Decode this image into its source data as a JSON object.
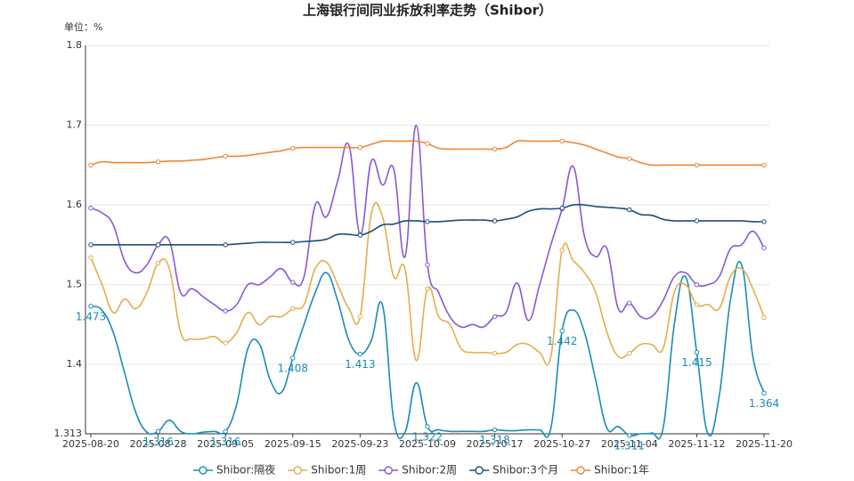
{
  "chart_data": {
    "type": "line",
    "title": "上海银行间同业拆放利率走势（Shibor）",
    "unit_label": "单位：%",
    "categories": [
      "2025-08-20",
      null,
      null,
      null,
      null,
      null,
      "2025-08-28",
      null,
      null,
      null,
      null,
      null,
      "2025-09-05",
      null,
      null,
      null,
      null,
      null,
      "2025-09-15",
      null,
      null,
      null,
      null,
      null,
      "2025-09-23",
      null,
      null,
      null,
      null,
      null,
      "2025-10-09",
      null,
      null,
      null,
      null,
      null,
      "2025-10-17",
      null,
      null,
      null,
      null,
      null,
      "2025-10-27",
      null,
      null,
      null,
      null,
      null,
      "2025-11-04",
      null,
      null,
      null,
      null,
      null,
      "2025-11-12",
      null,
      null,
      null,
      null,
      null,
      "2025-11-20"
    ],
    "ylim": [
      1.313,
      1.8
    ],
    "yticks": [
      1.313,
      1.4,
      1.5,
      1.6,
      1.7,
      1.8
    ],
    "grid": true,
    "legend": "bottom",
    "series": [
      {
        "name": "Shibor:隔夜",
        "color": "#1a8db3",
        "labels": true,
        "values": [
          1.473,
          1.468,
          1.44,
          1.39,
          1.34,
          1.315,
          1.316,
          1.33,
          1.316,
          1.313,
          1.315,
          1.316,
          1.316,
          1.35,
          1.42,
          1.426,
          1.38,
          1.365,
          1.408,
          1.45,
          1.49,
          1.515,
          1.48,
          1.43,
          1.413,
          1.43,
          1.474,
          1.33,
          1.315,
          1.377,
          1.322,
          1.318,
          1.316,
          1.316,
          1.316,
          1.316,
          1.318,
          1.317,
          1.317,
          1.318,
          1.318,
          1.32,
          1.442,
          1.468,
          1.44,
          1.38,
          1.32,
          1.322,
          1.311,
          1.313,
          1.314,
          1.32,
          1.45,
          1.51,
          1.415,
          1.313,
          1.36,
          1.48,
          1.525,
          1.41,
          1.364
        ]
      },
      {
        "name": "Shibor:1周",
        "color": "#e3ae4c",
        "values": [
          1.534,
          1.5,
          1.465,
          1.482,
          1.47,
          1.49,
          1.527,
          1.52,
          1.44,
          1.432,
          1.432,
          1.435,
          1.427,
          1.44,
          1.465,
          1.45,
          1.46,
          1.46,
          1.47,
          1.475,
          1.52,
          1.528,
          1.5,
          1.47,
          1.46,
          1.589,
          1.585,
          1.51,
          1.52,
          1.405,
          1.495,
          1.46,
          1.45,
          1.42,
          1.415,
          1.415,
          1.414,
          1.415,
          1.425,
          1.425,
          1.415,
          1.41,
          1.543,
          1.53,
          1.515,
          1.49,
          1.44,
          1.41,
          1.414,
          1.425,
          1.425,
          1.42,
          1.49,
          1.5,
          1.475,
          1.475,
          1.47,
          1.51,
          1.52,
          1.495,
          1.459
        ]
      },
      {
        "name": "Shibor:2周",
        "color": "#8959d1",
        "values": [
          1.596,
          1.59,
          1.575,
          1.53,
          1.515,
          1.525,
          1.55,
          1.555,
          1.49,
          1.495,
          1.485,
          1.475,
          1.467,
          1.475,
          1.5,
          1.5,
          1.51,
          1.52,
          1.503,
          1.51,
          1.6,
          1.585,
          1.63,
          1.675,
          1.563,
          1.655,
          1.625,
          1.645,
          1.535,
          1.7,
          1.525,
          1.49,
          1.46,
          1.447,
          1.45,
          1.447,
          1.46,
          1.465,
          1.502,
          1.455,
          1.5,
          1.55,
          1.595,
          1.648,
          1.56,
          1.535,
          1.545,
          1.47,
          1.477,
          1.46,
          1.46,
          1.48,
          1.51,
          1.515,
          1.5,
          1.5,
          1.51,
          1.545,
          1.55,
          1.567,
          1.546
        ]
      },
      {
        "name": "Shibor:3个月",
        "color": "#1d4e79",
        "values": [
          1.55,
          1.55,
          1.55,
          1.55,
          1.55,
          1.55,
          1.55,
          1.55,
          1.55,
          1.55,
          1.55,
          1.55,
          1.55,
          1.551,
          1.552,
          1.553,
          1.553,
          1.553,
          1.553,
          1.554,
          1.555,
          1.557,
          1.563,
          1.563,
          1.562,
          1.567,
          1.575,
          1.576,
          1.58,
          1.58,
          1.579,
          1.579,
          1.58,
          1.581,
          1.581,
          1.581,
          1.58,
          1.582,
          1.585,
          1.592,
          1.595,
          1.595,
          1.596,
          1.6,
          1.6,
          1.598,
          1.597,
          1.596,
          1.594,
          1.588,
          1.587,
          1.582,
          1.58,
          1.58,
          1.58,
          1.58,
          1.58,
          1.58,
          1.58,
          1.579,
          1.579
        ]
      },
      {
        "name": "Shibor:1年",
        "color": "#ee8735",
        "values": [
          1.65,
          1.654,
          1.653,
          1.653,
          1.653,
          1.653,
          1.654,
          1.655,
          1.655,
          1.656,
          1.657,
          1.659,
          1.661,
          1.661,
          1.662,
          1.664,
          1.666,
          1.668,
          1.671,
          1.672,
          1.672,
          1.672,
          1.672,
          1.672,
          1.672,
          1.676,
          1.68,
          1.68,
          1.68,
          1.68,
          1.677,
          1.671,
          1.67,
          1.67,
          1.67,
          1.67,
          1.67,
          1.672,
          1.68,
          1.68,
          1.68,
          1.68,
          1.68,
          1.678,
          1.675,
          1.67,
          1.665,
          1.66,
          1.658,
          1.653,
          1.65,
          1.65,
          1.65,
          1.65,
          1.65,
          1.65,
          1.65,
          1.65,
          1.65,
          1.65,
          1.65
        ]
      }
    ]
  }
}
